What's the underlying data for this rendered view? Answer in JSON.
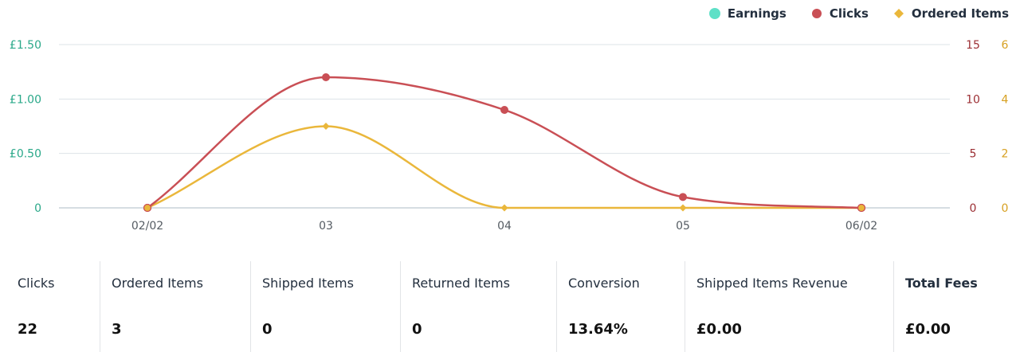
{
  "legend": [
    {
      "name": "Earnings",
      "color": "#5ee0c7",
      "marker": "circle"
    },
    {
      "name": "Clicks",
      "color": "#c94f55",
      "marker": "circle"
    },
    {
      "name": "Ordered Items",
      "color": "#eab73b",
      "marker": "diamond"
    }
  ],
  "chart_data": {
    "type": "line",
    "categories": [
      "02/02",
      "03",
      "04",
      "05",
      "06/02"
    ],
    "grid": true,
    "legend_position": "top-right",
    "axes": {
      "earnings": {
        "ticks": [
          "0",
          "£0.50",
          "£1.00",
          "£1.50"
        ],
        "range": [
          0,
          1.5
        ],
        "color": "#2aa889",
        "position": "left"
      },
      "clicks": {
        "ticks": [
          "0",
          "5",
          "10",
          "15"
        ],
        "range": [
          0,
          15
        ],
        "color": "#9c2f34",
        "position": "right"
      },
      "ordered_items": {
        "ticks": [
          "0",
          "2",
          "4",
          "6"
        ],
        "range": [
          0,
          6
        ],
        "color": "#d7a021",
        "position": "right"
      }
    },
    "series": [
      {
        "name": "Earnings",
        "axis": "earnings",
        "values": [
          0,
          0,
          0,
          0,
          0
        ]
      },
      {
        "name": "Clicks",
        "axis": "clicks",
        "values": [
          0,
          12,
          9,
          1,
          0
        ]
      },
      {
        "name": "Ordered Items",
        "axis": "ordered_items",
        "values": [
          0,
          3,
          0,
          0,
          0
        ]
      }
    ]
  },
  "stats": [
    {
      "label": "Clicks",
      "value": "22",
      "bold": false
    },
    {
      "label": "Ordered Items",
      "value": "3",
      "bold": false
    },
    {
      "label": "Shipped Items",
      "value": "0",
      "bold": false
    },
    {
      "label": "Returned Items",
      "value": "0",
      "bold": false
    },
    {
      "label": "Conversion",
      "value": "13.64%",
      "bold": false
    },
    {
      "label": "Shipped Items Revenue",
      "value": "£0.00",
      "bold": false
    },
    {
      "label": "Total Fees",
      "value": "£0.00",
      "bold": true
    }
  ]
}
